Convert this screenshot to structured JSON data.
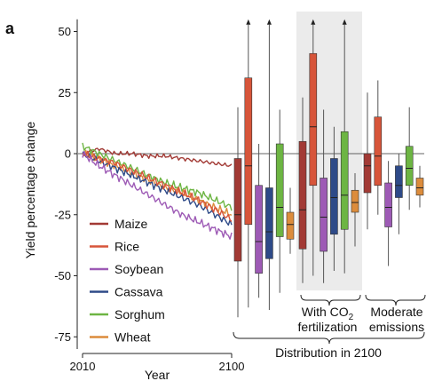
{
  "figure": {
    "panel_label": "a",
    "ylabel": "Yield percentage change",
    "xlabel": "Year",
    "x_tick_start": "2010",
    "x_tick_end": "2100",
    "distribution_label": "Distribution in 2100",
    "group_co2_line1": "With CO",
    "group_co2_sub": "2",
    "group_co2_line2": "fertilization",
    "group_mod_line1": "Moderate",
    "group_mod_line2": "emissions"
  },
  "chart_data": {
    "type": "line",
    "ylabel": "Yield percentage change",
    "xlabel": "Year",
    "ylim": [
      -80,
      55
    ],
    "yticks": [
      50,
      25,
      0,
      -25,
      -50,
      -75
    ],
    "xlim": [
      2010,
      2100
    ],
    "grid": false,
    "legend_placement": "bottom-left",
    "colors": {
      "Maize": "#a23a35",
      "Rice": "#d7553a",
      "Soybean": "#9d5ab5",
      "Cassava": "#2e4a88",
      "Sorghum": "#6db543",
      "Wheat": "#dc8c3c"
    },
    "series": [
      {
        "name": "Maize",
        "x": [
          2010,
          2020,
          2030,
          2040,
          2050,
          2060,
          2070,
          2080,
          2090,
          2100
        ],
        "values": [
          0,
          2,
          0,
          0,
          -1,
          -1,
          -2,
          -3,
          -4,
          -5
        ]
      },
      {
        "name": "Rice",
        "x": [
          2010,
          2020,
          2030,
          2040,
          2050,
          2060,
          2070,
          2080,
          2090,
          2100
        ],
        "values": [
          0,
          -2,
          -4,
          -7,
          -10,
          -13,
          -16,
          -19,
          -23,
          -27
        ]
      },
      {
        "name": "Soybean",
        "x": [
          2010,
          2020,
          2030,
          2040,
          2050,
          2060,
          2070,
          2080,
          2090,
          2100
        ],
        "values": [
          0,
          -5,
          -9,
          -13,
          -17,
          -21,
          -25,
          -28,
          -31,
          -34
        ]
      },
      {
        "name": "Cassava",
        "x": [
          2010,
          2020,
          2030,
          2040,
          2050,
          2060,
          2070,
          2080,
          2090,
          2100
        ],
        "values": [
          0,
          -3,
          -6,
          -9,
          -12,
          -15,
          -18,
          -21,
          -25,
          -29
        ]
      },
      {
        "name": "Sorghum",
        "x": [
          2010,
          2020,
          2030,
          2040,
          2050,
          2060,
          2070,
          2080,
          2090,
          2100
        ],
        "values": [
          3,
          0,
          -3,
          -6,
          -9,
          -12,
          -14,
          -16,
          -19,
          -22
        ]
      },
      {
        "name": "Wheat",
        "x": [
          2010,
          2020,
          2030,
          2040,
          2050,
          2060,
          2070,
          2080,
          2090,
          2100
        ],
        "values": [
          0,
          -2,
          -5,
          -8,
          -11,
          -14,
          -16,
          -19,
          -22,
          -25
        ]
      }
    ],
    "distribution_2100": {
      "type": "box",
      "groups": [
        {
          "label": "",
          "shaded": false,
          "boxes": [
            {
              "crop": "Maize",
              "whisker_low": -67,
              "q1": -44,
              "median": -25,
              "q3": -2,
              "whisker_high": 19,
              "arrow": false
            },
            {
              "crop": "Rice",
              "whisker_low": -63,
              "q1": -29,
              "median": -5,
              "q3": 31,
              "whisker_high": 55,
              "arrow": true
            },
            {
              "crop": "Soybean",
              "whisker_low": -59,
              "q1": -49,
              "median": -36,
              "q3": -13,
              "whisker_high": 4,
              "arrow": false
            },
            {
              "crop": "Cassava",
              "whisker_low": -64,
              "q1": -43,
              "median": -32,
              "q3": -14,
              "whisker_high": 55,
              "arrow": true
            },
            {
              "crop": "Sorghum",
              "whisker_low": -57,
              "q1": -34,
              "median": -22,
              "q3": 4,
              "whisker_high": 18,
              "arrow": false
            },
            {
              "crop": "Wheat",
              "whisker_low": -41,
              "q1": -35,
              "median": -29,
              "q3": -24,
              "whisker_high": -14,
              "arrow": false
            }
          ]
        },
        {
          "label": "With CO2 fertilization",
          "shaded": true,
          "boxes": [
            {
              "crop": "Maize",
              "whisker_low": -53,
              "q1": -39,
              "median": -23,
              "q3": 5,
              "whisker_high": 23,
              "arrow": false
            },
            {
              "crop": "Rice",
              "whisker_low": -50,
              "q1": -13,
              "median": 11,
              "q3": 41,
              "whisker_high": 55,
              "arrow": true
            },
            {
              "crop": "Soybean",
              "whisker_low": -53,
              "q1": -40,
              "median": -26,
              "q3": -10,
              "whisker_high": 18,
              "arrow": false
            },
            {
              "crop": "Cassava",
              "whisker_low": -48,
              "q1": -33,
              "median": -18,
              "q3": -2,
              "whisker_high": 11,
              "arrow": false
            },
            {
              "crop": "Sorghum",
              "whisker_low": -49,
              "q1": -31,
              "median": -17,
              "q3": 9,
              "whisker_high": 55,
              "arrow": true
            },
            {
              "crop": "Wheat",
              "whisker_low": -38,
              "q1": -24,
              "median": -20,
              "q3": -15,
              "whisker_high": -8,
              "arrow": false
            }
          ]
        },
        {
          "label": "Moderate emissions",
          "shaded": false,
          "boxes": [
            {
              "crop": "Maize",
              "whisker_low": -31,
              "q1": -16,
              "median": -5,
              "q3": 0,
              "whisker_high": 25,
              "arrow": false
            },
            {
              "crop": "Rice",
              "whisker_low": -25,
              "q1": -13,
              "median": -1,
              "q3": 15,
              "whisker_high": 30,
              "arrow": false
            },
            {
              "crop": "Soybean",
              "whisker_low": -46,
              "q1": -30,
              "median": -22,
              "q3": -12,
              "whisker_high": -3,
              "arrow": false
            },
            {
              "crop": "Cassava",
              "whisker_low": -33,
              "q1": -18,
              "median": -13,
              "q3": -5,
              "whisker_high": 0,
              "arrow": false
            },
            {
              "crop": "Sorghum",
              "whisker_low": -23,
              "q1": -13,
              "median": -6,
              "q3": 3,
              "whisker_high": 19,
              "arrow": false
            },
            {
              "crop": "Wheat",
              "whisker_low": -22,
              "q1": -17,
              "median": -14,
              "q3": -10,
              "whisker_high": -5,
              "arrow": false
            }
          ]
        }
      ]
    }
  }
}
